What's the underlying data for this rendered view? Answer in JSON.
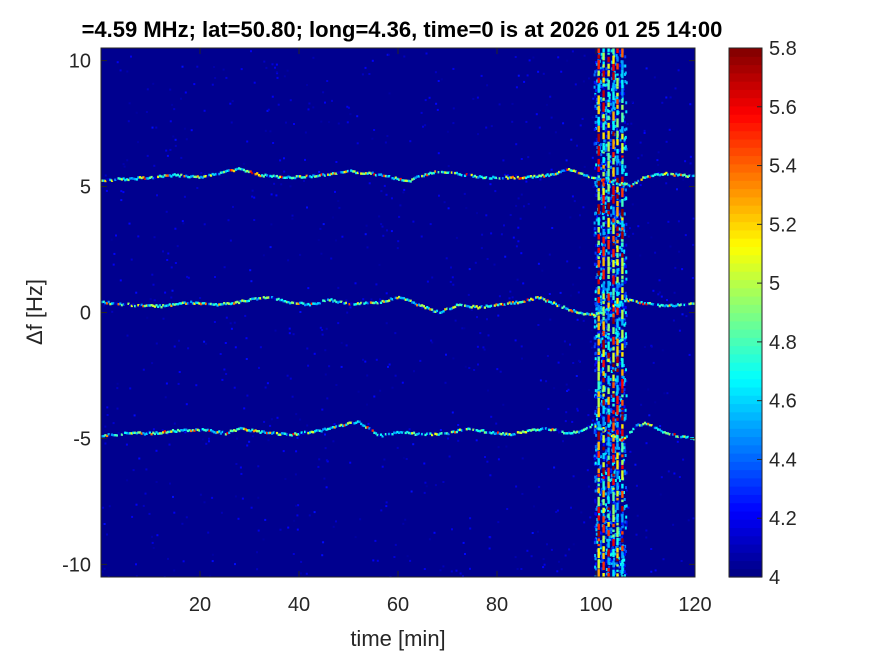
{
  "chart_data": {
    "type": "heatmap",
    "title": "=4.59 MHz;  lat=50.80; long=4.36, time=0 is at 2026 01 25 14:00",
    "xlabel": "time [min]",
    "ylabel": "Δf [Hz]",
    "xlim": [
      0,
      120
    ],
    "ylim": [
      -10.5,
      10.5
    ],
    "xticks": [
      20,
      40,
      60,
      80,
      100,
      120
    ],
    "xtick_labels": [
      "20",
      "40",
      "60",
      "80",
      "100",
      "120"
    ],
    "yticks": [
      -10,
      -5,
      0,
      5,
      10
    ],
    "ytick_labels": [
      "-10",
      "-5",
      "0",
      "5",
      "10"
    ],
    "colorbar": {
      "colormap": "jet",
      "clim": [
        4,
        5.8
      ],
      "ticks": [
        4,
        4.2,
        4.4,
        4.6,
        4.8,
        5,
        5.2,
        5.4,
        5.6,
        5.8
      ],
      "tick_labels": [
        "4",
        "4.2",
        "4.4",
        "4.6",
        "4.8",
        "5",
        "5.2",
        "5.4",
        "5.6",
        "5.8"
      ]
    },
    "background_value": 4.05,
    "traces": [
      {
        "center": 5.2,
        "points": [
          [
            0,
            5.25
          ],
          [
            5,
            5.3
          ],
          [
            10,
            5.35
          ],
          [
            15,
            5.45
          ],
          [
            20,
            5.35
          ],
          [
            25,
            5.6
          ],
          [
            28,
            5.7
          ],
          [
            32,
            5.45
          ],
          [
            38,
            5.35
          ],
          [
            45,
            5.45
          ],
          [
            50,
            5.6
          ],
          [
            55,
            5.5
          ],
          [
            60,
            5.3
          ],
          [
            62,
            5.2
          ],
          [
            64,
            5.4
          ],
          [
            68,
            5.6
          ],
          [
            72,
            5.5
          ],
          [
            78,
            5.35
          ],
          [
            84,
            5.35
          ],
          [
            88,
            5.4
          ],
          [
            92,
            5.5
          ],
          [
            94,
            5.7
          ],
          [
            97,
            5.5
          ],
          [
            100,
            5.3
          ],
          [
            103,
            5.15
          ],
          [
            107,
            5.05
          ],
          [
            110,
            5.4
          ],
          [
            114,
            5.5
          ],
          [
            120,
            5.4
          ]
        ]
      },
      {
        "center": 0.3,
        "points": [
          [
            0,
            0.4
          ],
          [
            6,
            0.3
          ],
          [
            12,
            0.25
          ],
          [
            18,
            0.4
          ],
          [
            22,
            0.3
          ],
          [
            26,
            0.35
          ],
          [
            30,
            0.5
          ],
          [
            34,
            0.6
          ],
          [
            38,
            0.4
          ],
          [
            42,
            0.3
          ],
          [
            46,
            0.5
          ],
          [
            50,
            0.35
          ],
          [
            56,
            0.4
          ],
          [
            60,
            0.6
          ],
          [
            64,
            0.3
          ],
          [
            68,
            0.0
          ],
          [
            72,
            0.3
          ],
          [
            76,
            0.2
          ],
          [
            80,
            0.3
          ],
          [
            84,
            0.4
          ],
          [
            88,
            0.6
          ],
          [
            92,
            0.3
          ],
          [
            96,
            0.0
          ],
          [
            100,
            -0.1
          ],
          [
            103,
            0.2
          ],
          [
            106,
            0.5
          ],
          [
            110,
            0.35
          ],
          [
            114,
            0.25
          ],
          [
            120,
            0.35
          ]
        ]
      },
      {
        "center": -4.8,
        "points": [
          [
            0,
            -4.9
          ],
          [
            5,
            -4.8
          ],
          [
            10,
            -4.8
          ],
          [
            15,
            -4.7
          ],
          [
            20,
            -4.65
          ],
          [
            25,
            -4.8
          ],
          [
            28,
            -4.6
          ],
          [
            32,
            -4.75
          ],
          [
            38,
            -4.85
          ],
          [
            44,
            -4.7
          ],
          [
            50,
            -4.4
          ],
          [
            52,
            -4.35
          ],
          [
            56,
            -4.9
          ],
          [
            60,
            -4.75
          ],
          [
            65,
            -4.85
          ],
          [
            70,
            -4.8
          ],
          [
            74,
            -4.6
          ],
          [
            78,
            -4.75
          ],
          [
            82,
            -4.85
          ],
          [
            86,
            -4.7
          ],
          [
            90,
            -4.6
          ],
          [
            94,
            -4.8
          ],
          [
            96,
            -4.75
          ],
          [
            99,
            -4.5
          ],
          [
            102,
            -4.75
          ],
          [
            105,
            -5.1
          ],
          [
            108,
            -4.5
          ],
          [
            110,
            -4.4
          ],
          [
            114,
            -4.8
          ],
          [
            120,
            -5.05
          ]
        ]
      }
    ],
    "interference_band": {
      "x_range": [
        99.5,
        106
      ],
      "strong_lines_min": [
        100.5,
        101.5,
        102.5,
        103.5,
        104.3,
        105.3
      ],
      "peak_value": 5.8
    }
  }
}
